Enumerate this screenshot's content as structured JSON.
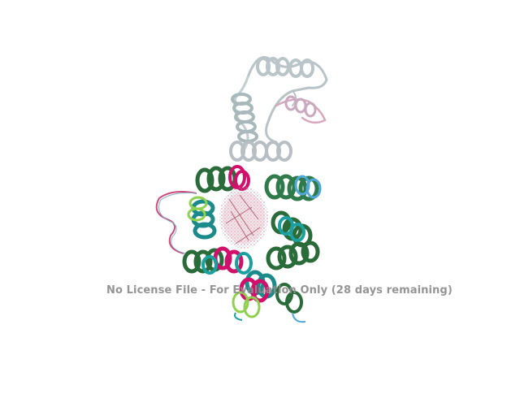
{
  "viewer": {
    "background": "#ffffff",
    "watermark": "No License File - For Evaluation Only (28 days remaining)",
    "watermark_color": "#8c8c8c"
  },
  "structure": {
    "subject": "superimposed protein helix bundle cartoon",
    "colors": [
      "#2a6b3a",
      "#1aa0a0",
      "#d0106a",
      "#8fd14f",
      "#c8c8c8",
      "#e8a0b0",
      "#4fa8d8"
    ]
  }
}
